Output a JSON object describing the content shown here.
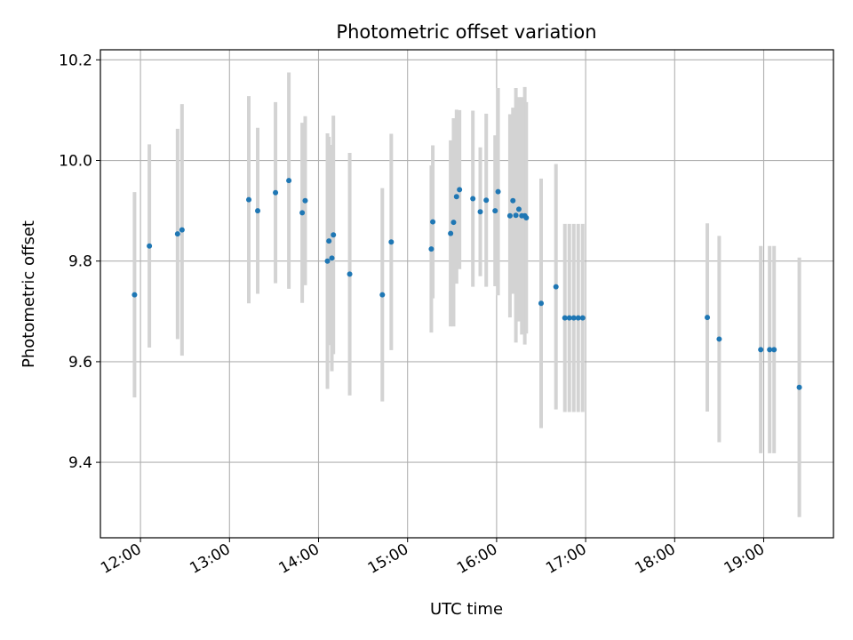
{
  "chart_data": {
    "type": "scatter",
    "title": "Photometric offset variation",
    "xlabel": "UTC time",
    "ylabel": "Photometric offset",
    "x_unit": "UTC time (HH:MM)",
    "xlim": [
      "11:33",
      "19:47"
    ],
    "ylim": [
      9.25,
      10.22
    ],
    "xticks": [
      "12:00",
      "13:00",
      "14:00",
      "15:00",
      "16:00",
      "17:00",
      "18:00",
      "19:00"
    ],
    "yticks": [
      9.4,
      9.6,
      9.8,
      10.0,
      10.2
    ],
    "grid": true,
    "colors": {
      "points": "#1f77b4",
      "errorbars": "#d3d3d3",
      "grid": "#b0b0b0"
    },
    "series": [
      {
        "x": [
          "11:56",
          "12:06",
          "12:25",
          "12:28",
          "13:13",
          "13:19",
          "13:31",
          "13:40",
          "13:49",
          "13:51",
          "14:06",
          "14:07",
          "14:09",
          "14:10",
          "14:21",
          "14:43",
          "14:49",
          "15:16",
          "15:17",
          "15:29",
          "15:31",
          "15:33",
          "15:35",
          "15:44",
          "15:49",
          "15:53",
          "15:59",
          "16:01",
          "16:09",
          "16:11",
          "16:13",
          "16:15",
          "16:17",
          "16:19",
          "16:20",
          "16:30",
          "16:40",
          "16:46",
          "16:49",
          "16:52",
          "16:55",
          "16:58",
          "18:22",
          "18:30",
          "18:58",
          "19:04",
          "19:07",
          "19:24"
        ],
        "y": [
          9.733,
          9.83,
          9.854,
          9.862,
          9.922,
          9.9,
          9.936,
          9.96,
          9.896,
          9.92,
          9.8,
          9.84,
          9.806,
          9.852,
          9.774,
          9.733,
          9.838,
          9.824,
          9.878,
          9.855,
          9.877,
          9.928,
          9.942,
          9.924,
          9.898,
          9.921,
          9.9,
          9.938,
          9.89,
          9.92,
          9.891,
          9.903,
          9.89,
          9.89,
          9.886,
          9.716,
          9.749,
          9.687,
          9.687,
          9.687,
          9.687,
          9.687,
          9.688,
          9.645,
          9.624,
          9.624,
          9.624,
          9.549
        ],
        "yerr": [
          0.204,
          0.202,
          0.209,
          0.25,
          0.206,
          0.165,
          0.18,
          0.215,
          0.179,
          0.168,
          0.254,
          0.207,
          0.225,
          0.237,
          0.241,
          0.212,
          0.215,
          0.166,
          0.152,
          0.185,
          0.207,
          0.173,
          0.158,
          0.175,
          0.128,
          0.172,
          0.15,
          0.206,
          0.202,
          0.185,
          0.253,
          0.223,
          0.236,
          0.256,
          0.23,
          0.248,
          0.244,
          0.187,
          0.187,
          0.187,
          0.187,
          0.187,
          0.187,
          0.205,
          0.206,
          0.206,
          0.206,
          0.258
        ]
      }
    ]
  }
}
